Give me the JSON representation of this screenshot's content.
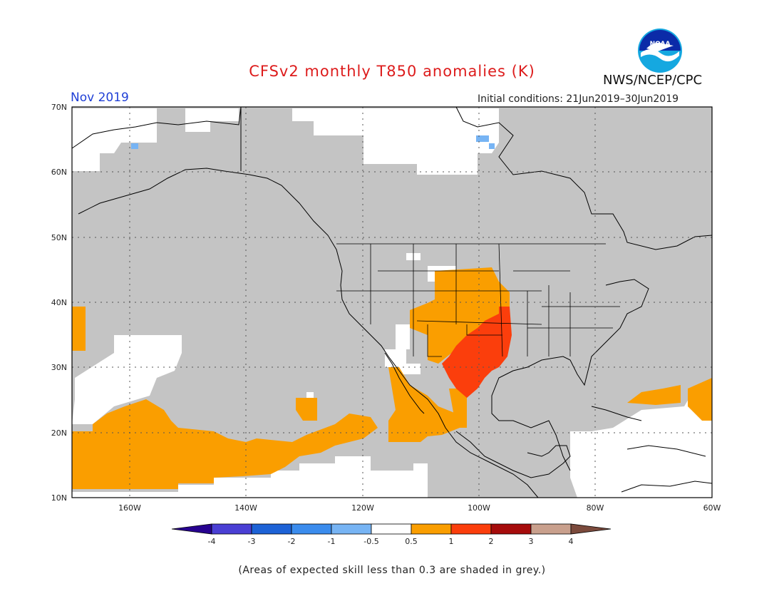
{
  "header": {
    "title": "CFSv2 monthly T850 anomalies (K)",
    "agency": "NWS/NCEP/CPC",
    "logo_text": "NOAA",
    "month": "Nov 2019",
    "initial_conditions": "Initial conditions: 21Jun2019–30Jun2019"
  },
  "map": {
    "lon_range": [
      -170,
      -60
    ],
    "lat_range": [
      10,
      70
    ],
    "lat_labels": [
      "10N",
      "20N",
      "30N",
      "40N",
      "50N",
      "60N",
      "70N"
    ],
    "lon_labels": [
      "160W",
      "140W",
      "120W",
      "100W",
      "80W",
      "60W"
    ],
    "grey_meaning": "skill < 0.3",
    "colors": {
      "grey": "#c4c4c4",
      "orange": "#fa9e00",
      "redorange": "#fb3e0c",
      "lightblue": "#77b4f4"
    }
  },
  "colorbar": {
    "ticks": [
      "-4",
      "-3",
      "-2",
      "-1",
      "-0.5",
      "0.5",
      "1",
      "2",
      "3",
      "4"
    ],
    "colors": [
      "#270290",
      "#4a3fd4",
      "#1d62d6",
      "#3b8ced",
      "#77b4f4",
      "#ffffff",
      "#fa9e00",
      "#fb3e0c",
      "#a60c0c",
      "#c9a08d",
      "#7b4a3c"
    ]
  },
  "footnote": "(Areas of expected skill less than 0.3 are shaded in grey.)"
}
